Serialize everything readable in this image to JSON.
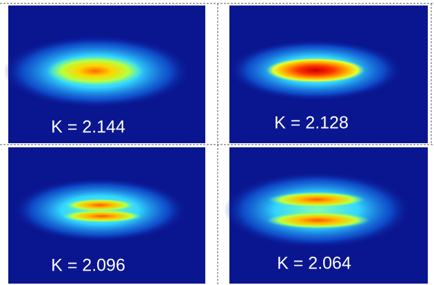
{
  "panels": [
    {
      "label": "K = 2.144"
    },
    {
      "label": "K = 2.128"
    },
    {
      "label": "K = 2.096"
    },
    {
      "label": "K = 2.064"
    }
  ]
}
